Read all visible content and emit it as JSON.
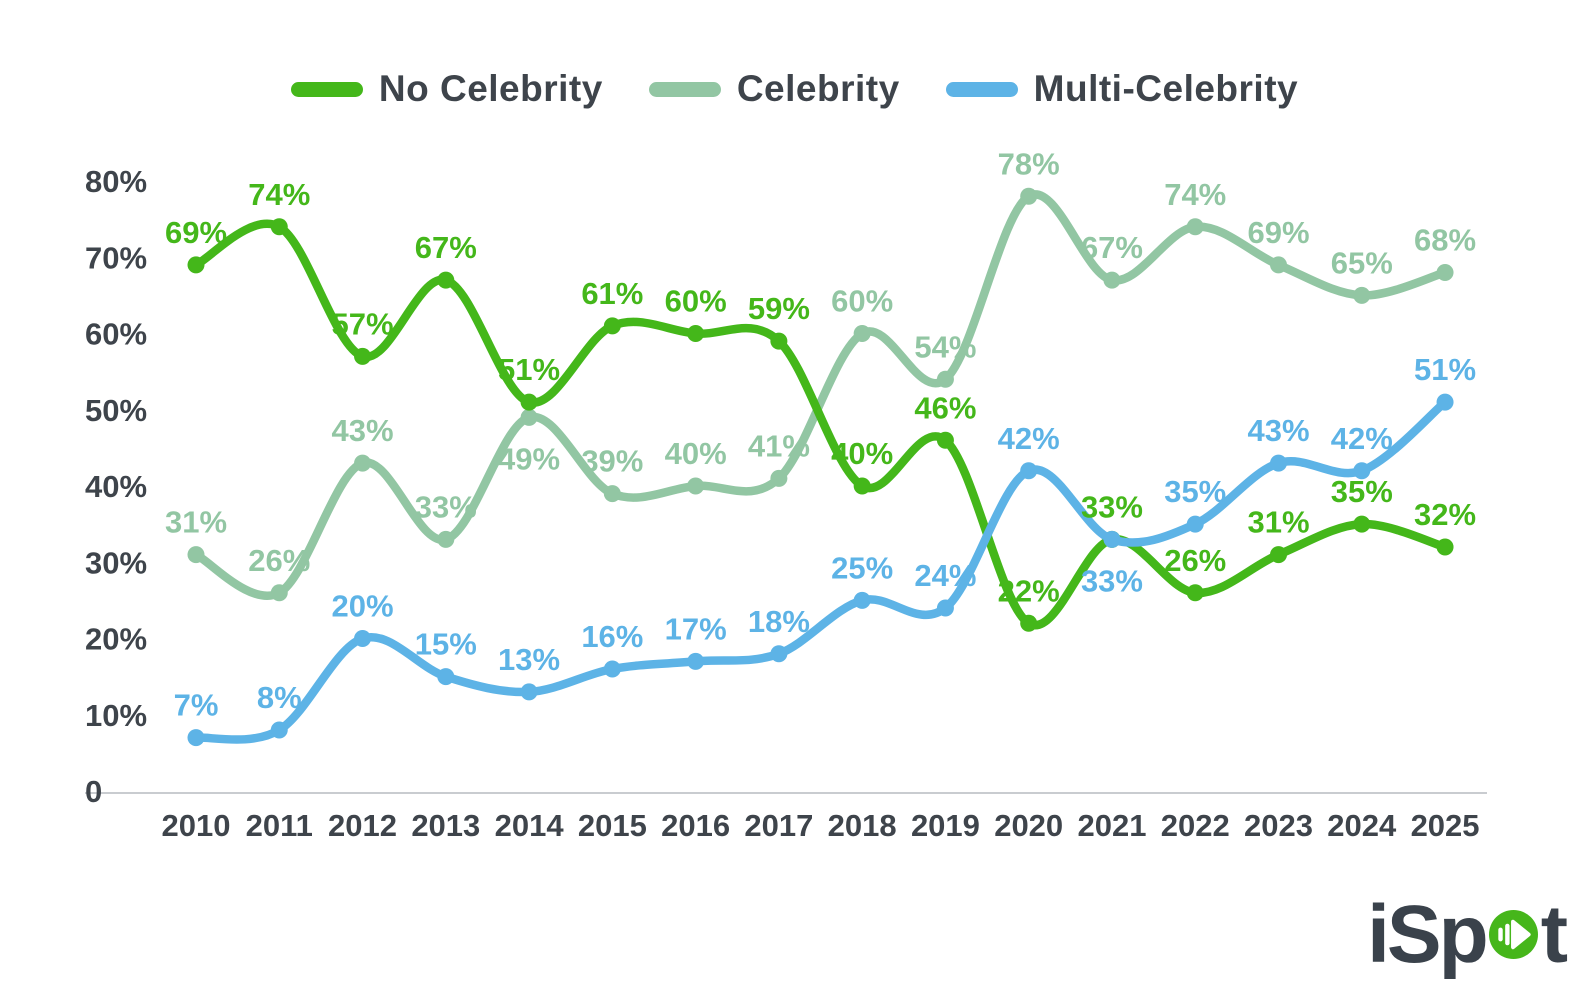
{
  "chart_data": {
    "type": "line",
    "title": "",
    "x_categories": [
      "2010",
      "2011",
      "2012",
      "2013",
      "2014",
      "2015",
      "2016",
      "2017",
      "2018",
      "2019",
      "2020",
      "2021",
      "2022",
      "2023",
      "2024",
      "2025"
    ],
    "series": [
      {
        "name": "No Celebrity",
        "color": "#44b71a",
        "values": [
          69,
          74,
          57,
          67,
          51,
          61,
          60,
          59,
          40,
          46,
          22,
          33,
          26,
          31,
          35,
          32
        ]
      },
      {
        "name": "Celebrity",
        "color": "#92c6a3",
        "values": [
          31,
          26,
          43,
          33,
          49,
          39,
          40,
          41,
          60,
          54,
          78,
          67,
          74,
          69,
          65,
          68
        ]
      },
      {
        "name": "Multi-Celebrity",
        "color": "#5db3e6",
        "values": [
          7,
          8,
          20,
          15,
          13,
          16,
          17,
          18,
          25,
          24,
          42,
          33,
          35,
          43,
          42,
          51
        ]
      }
    ],
    "draw_order": [
      "Celebrity",
      "No Celebrity",
      "Multi-Celebrity"
    ],
    "ylim": [
      0,
      80
    ],
    "yticks": [
      {
        "value": 80,
        "label": "80%"
      },
      {
        "value": 70,
        "label": "70%"
      },
      {
        "value": 60,
        "label": "60%"
      },
      {
        "value": 50,
        "label": "50%"
      },
      {
        "value": 40,
        "label": "40%"
      },
      {
        "value": 30,
        "label": "30%"
      },
      {
        "value": 20,
        "label": "20%"
      },
      {
        "value": 10,
        "label": "10%"
      },
      {
        "value": 0,
        "label": "0"
      }
    ],
    "grid": false,
    "legend_position": "top-center",
    "data_label_suffix": "%",
    "data_labels_below": [
      {
        "series": "Celebrity",
        "x": "2014"
      },
      {
        "series": "Multi-Celebrity",
        "x": "2021"
      }
    ]
  },
  "legend": {
    "items": [
      {
        "label": "No Celebrity",
        "color": "#44b71a"
      },
      {
        "label": "Celebrity",
        "color": "#92c6a3"
      },
      {
        "label": "Multi-Celebrity",
        "color": "#5db3e6"
      }
    ]
  },
  "axis": {
    "text_color": "#3e444b",
    "baseline_color": "#c9ccd0"
  },
  "logo": {
    "brand": "iSpot",
    "left": "iSp",
    "right": "t",
    "text_color": "#3a424b",
    "accent_color": "#46b61b"
  }
}
